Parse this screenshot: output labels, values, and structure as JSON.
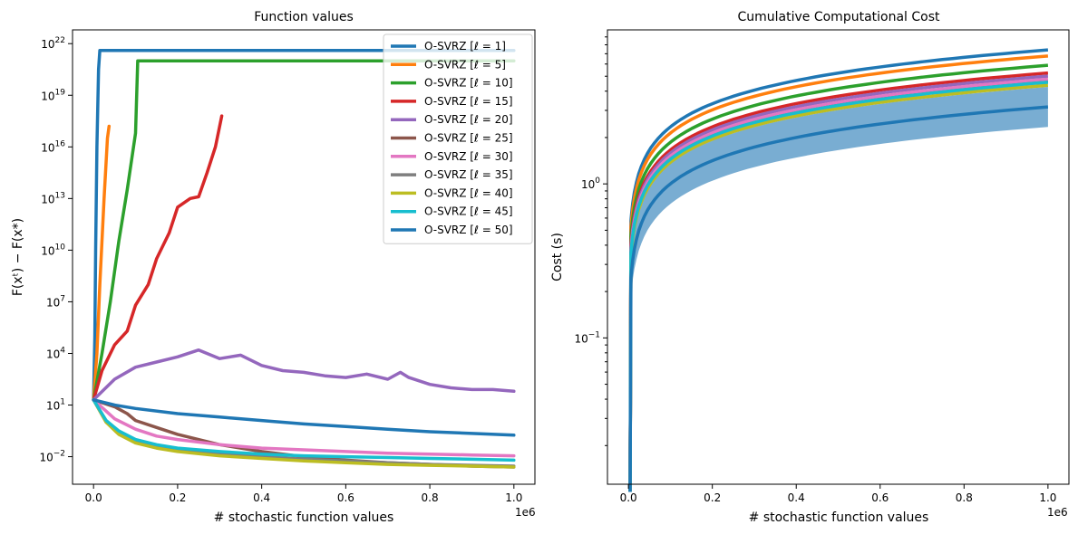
{
  "chart_data": [
    {
      "type": "line",
      "title": "Function values",
      "xlabel": "# stochastic function values",
      "ylabel": "F(xᵗ) − F(x*)",
      "x_offset_label": "1e6",
      "xlim": [
        -0.05,
        1.05
      ],
      "ylim_log10": [
        -3.6,
        22.8
      ],
      "yscale": "log",
      "x_ticks": [
        "0.0",
        "0.2",
        "0.4",
        "0.6",
        "0.8",
        "1.0"
      ],
      "y_ticks": [
        {
          "base": "10",
          "exp": "−2"
        },
        {
          "base": "10",
          "exp": "1"
        },
        {
          "base": "10",
          "exp": "4"
        },
        {
          "base": "10",
          "exp": "7"
        },
        {
          "base": "10",
          "exp": "10"
        },
        {
          "base": "10",
          "exp": "13"
        },
        {
          "base": "10",
          "exp": "16"
        },
        {
          "base": "10",
          "exp": "19"
        },
        {
          "base": "10",
          "exp": "22"
        }
      ],
      "legend_position": "top-right",
      "series": [
        {
          "name": "O-SVRZ [ℓ = 1]",
          "color": "#1f77b4",
          "points": [
            [
              0,
              1.3
            ],
            [
              0.003,
              5
            ],
            [
              0.005,
              10
            ],
            [
              0.008,
              16
            ],
            [
              0.012,
              20.5
            ],
            [
              0.015,
              21.6
            ],
            [
              1.0,
              21.6
            ]
          ]
        },
        {
          "name": "O-SVRZ [ℓ = 5]",
          "color": "#ff7f0e",
          "points": [
            [
              0,
              1.3
            ],
            [
              0.008,
              4
            ],
            [
              0.015,
              8
            ],
            [
              0.025,
              13
            ],
            [
              0.033,
              16.5
            ],
            [
              0.037,
              17.2
            ]
          ]
        },
        {
          "name": "O-SVRZ [ℓ = 10]",
          "color": "#2ca02c",
          "points": [
            [
              0,
              1.3
            ],
            [
              0.02,
              4
            ],
            [
              0.04,
              7
            ],
            [
              0.06,
              10.5
            ],
            [
              0.08,
              13.5
            ],
            [
              0.1,
              16.8
            ],
            [
              0.105,
              21
            ],
            [
              1.0,
              21
            ]
          ]
        },
        {
          "name": "O-SVRZ [ℓ = 15]",
          "color": "#d62728",
          "points": [
            [
              0,
              1.3
            ],
            [
              0.02,
              3
            ],
            [
              0.05,
              4.5
            ],
            [
              0.08,
              5.3
            ],
            [
              0.1,
              6.8
            ],
            [
              0.13,
              8
            ],
            [
              0.15,
              9.5
            ],
            [
              0.18,
              11
            ],
            [
              0.2,
              12.5
            ],
            [
              0.23,
              13
            ],
            [
              0.25,
              13.1
            ],
            [
              0.27,
              14.5
            ],
            [
              0.29,
              16
            ],
            [
              0.305,
              17.8
            ]
          ]
        },
        {
          "name": "O-SVRZ [ℓ = 20]",
          "color": "#9467bd",
          "points": [
            [
              0,
              1.3
            ],
            [
              0.05,
              2.5
            ],
            [
              0.1,
              3.2
            ],
            [
              0.15,
              3.5
            ],
            [
              0.2,
              3.8
            ],
            [
              0.25,
              4.2
            ],
            [
              0.3,
              3.7
            ],
            [
              0.35,
              3.9
            ],
            [
              0.4,
              3.3
            ],
            [
              0.45,
              3.0
            ],
            [
              0.5,
              2.9
            ],
            [
              0.55,
              2.7
            ],
            [
              0.6,
              2.6
            ],
            [
              0.65,
              2.8
            ],
            [
              0.7,
              2.5
            ],
            [
              0.73,
              2.9
            ],
            [
              0.75,
              2.6
            ],
            [
              0.8,
              2.2
            ],
            [
              0.85,
              2.0
            ],
            [
              0.9,
              1.9
            ],
            [
              0.95,
              1.9
            ],
            [
              1.0,
              1.8
            ]
          ]
        },
        {
          "name": "O-SVRZ [ℓ = 25]",
          "color": "#8c564b",
          "points": [
            [
              0,
              1.3
            ],
            [
              0.05,
              0.9
            ],
            [
              0.08,
              0.5
            ],
            [
              0.1,
              0.1
            ],
            [
              0.15,
              -0.3
            ],
            [
              0.2,
              -0.7
            ],
            [
              0.3,
              -1.3
            ],
            [
              0.4,
              -1.7
            ],
            [
              0.5,
              -2.0
            ],
            [
              0.6,
              -2.2
            ],
            [
              0.7,
              -2.35
            ],
            [
              0.8,
              -2.45
            ],
            [
              0.9,
              -2.55
            ],
            [
              1.0,
              -2.6
            ]
          ]
        },
        {
          "name": "O-SVRZ [ℓ = 30]",
          "color": "#e377c2",
          "points": [
            [
              0,
              1.3
            ],
            [
              0.05,
              0.2
            ],
            [
              0.1,
              -0.4
            ],
            [
              0.15,
              -0.8
            ],
            [
              0.2,
              -1.0
            ],
            [
              0.3,
              -1.3
            ],
            [
              0.4,
              -1.5
            ],
            [
              0.5,
              -1.6
            ],
            [
              0.6,
              -1.7
            ],
            [
              0.7,
              -1.8
            ],
            [
              0.8,
              -1.85
            ],
            [
              0.9,
              -1.9
            ],
            [
              1.0,
              -1.95
            ]
          ]
        },
        {
          "name": "O-SVRZ [ℓ = 35]",
          "color": "#7f7f7f",
          "points": [
            [
              0,
              1.3
            ],
            [
              0.03,
              0
            ],
            [
              0.06,
              -0.6
            ],
            [
              0.1,
              -1.1
            ],
            [
              0.15,
              -1.4
            ],
            [
              0.2,
              -1.6
            ],
            [
              0.3,
              -1.85
            ],
            [
              0.4,
              -2.0
            ],
            [
              0.5,
              -2.15
            ],
            [
              0.6,
              -2.25
            ],
            [
              0.7,
              -2.35
            ],
            [
              0.8,
              -2.45
            ],
            [
              0.9,
              -2.5
            ],
            [
              1.0,
              -2.55
            ]
          ]
        },
        {
          "name": "O-SVRZ [ℓ = 40]",
          "color": "#bcbd22",
          "points": [
            [
              0,
              1.3
            ],
            [
              0.03,
              0
            ],
            [
              0.06,
              -0.7
            ],
            [
              0.1,
              -1.2
            ],
            [
              0.15,
              -1.5
            ],
            [
              0.2,
              -1.7
            ],
            [
              0.3,
              -1.95
            ],
            [
              0.4,
              -2.1
            ],
            [
              0.5,
              -2.25
            ],
            [
              0.6,
              -2.35
            ],
            [
              0.7,
              -2.45
            ],
            [
              0.8,
              -2.5
            ],
            [
              0.9,
              -2.55
            ],
            [
              1.0,
              -2.6
            ]
          ]
        },
        {
          "name": "O-SVRZ [ℓ = 45]",
          "color": "#17becf",
          "points": [
            [
              0,
              1.3
            ],
            [
              0.03,
              0.1
            ],
            [
              0.06,
              -0.5
            ],
            [
              0.1,
              -1.0
            ],
            [
              0.15,
              -1.3
            ],
            [
              0.2,
              -1.5
            ],
            [
              0.3,
              -1.7
            ],
            [
              0.4,
              -1.85
            ],
            [
              0.5,
              -1.95
            ],
            [
              0.6,
              -2.0
            ],
            [
              0.7,
              -2.05
            ],
            [
              0.8,
              -2.1
            ],
            [
              0.9,
              -2.15
            ],
            [
              1.0,
              -2.2
            ]
          ]
        },
        {
          "name": "O-SVRZ [ℓ = 50]",
          "color": "#1f77b4",
          "points": [
            [
              0,
              1.3
            ],
            [
              0.05,
              1.0
            ],
            [
              0.1,
              0.8
            ],
            [
              0.2,
              0.5
            ],
            [
              0.3,
              0.3
            ],
            [
              0.4,
              0.1
            ],
            [
              0.5,
              -0.1
            ],
            [
              0.6,
              -0.25
            ],
            [
              0.7,
              -0.4
            ],
            [
              0.8,
              -0.55
            ],
            [
              0.9,
              -0.65
            ],
            [
              1.0,
              -0.75
            ]
          ]
        }
      ]
    },
    {
      "type": "line",
      "title": "Cumulative Computational Cost",
      "xlabel": "# stochastic function values",
      "ylabel": "Cost (s)",
      "x_offset_label": "1e6",
      "xlim": [
        -0.05,
        1.05
      ],
      "ylim_log10": [
        -1.95,
        1.0
      ],
      "yscale": "log",
      "x_ticks": [
        "0.0",
        "0.2",
        "0.4",
        "0.6",
        "0.8",
        "1.0"
      ],
      "y_ticks": [
        {
          "base": "10",
          "exp": "−1",
          "value": -1
        },
        {
          "base": "10",
          "exp": "0",
          "value": 0
        }
      ],
      "y_end_log10": [
        0.87,
        0.83,
        0.77,
        0.72,
        0.7,
        0.67,
        0.68,
        0.66,
        0.64,
        0.66,
        0.5
      ],
      "band": {
        "color": "#1f77b4",
        "opacity": 0.6,
        "upper_end_log10": 0.63,
        "lower_end_log10": 0.37
      },
      "series_note": "same eleven series as left panel, colors in same order"
    }
  ]
}
